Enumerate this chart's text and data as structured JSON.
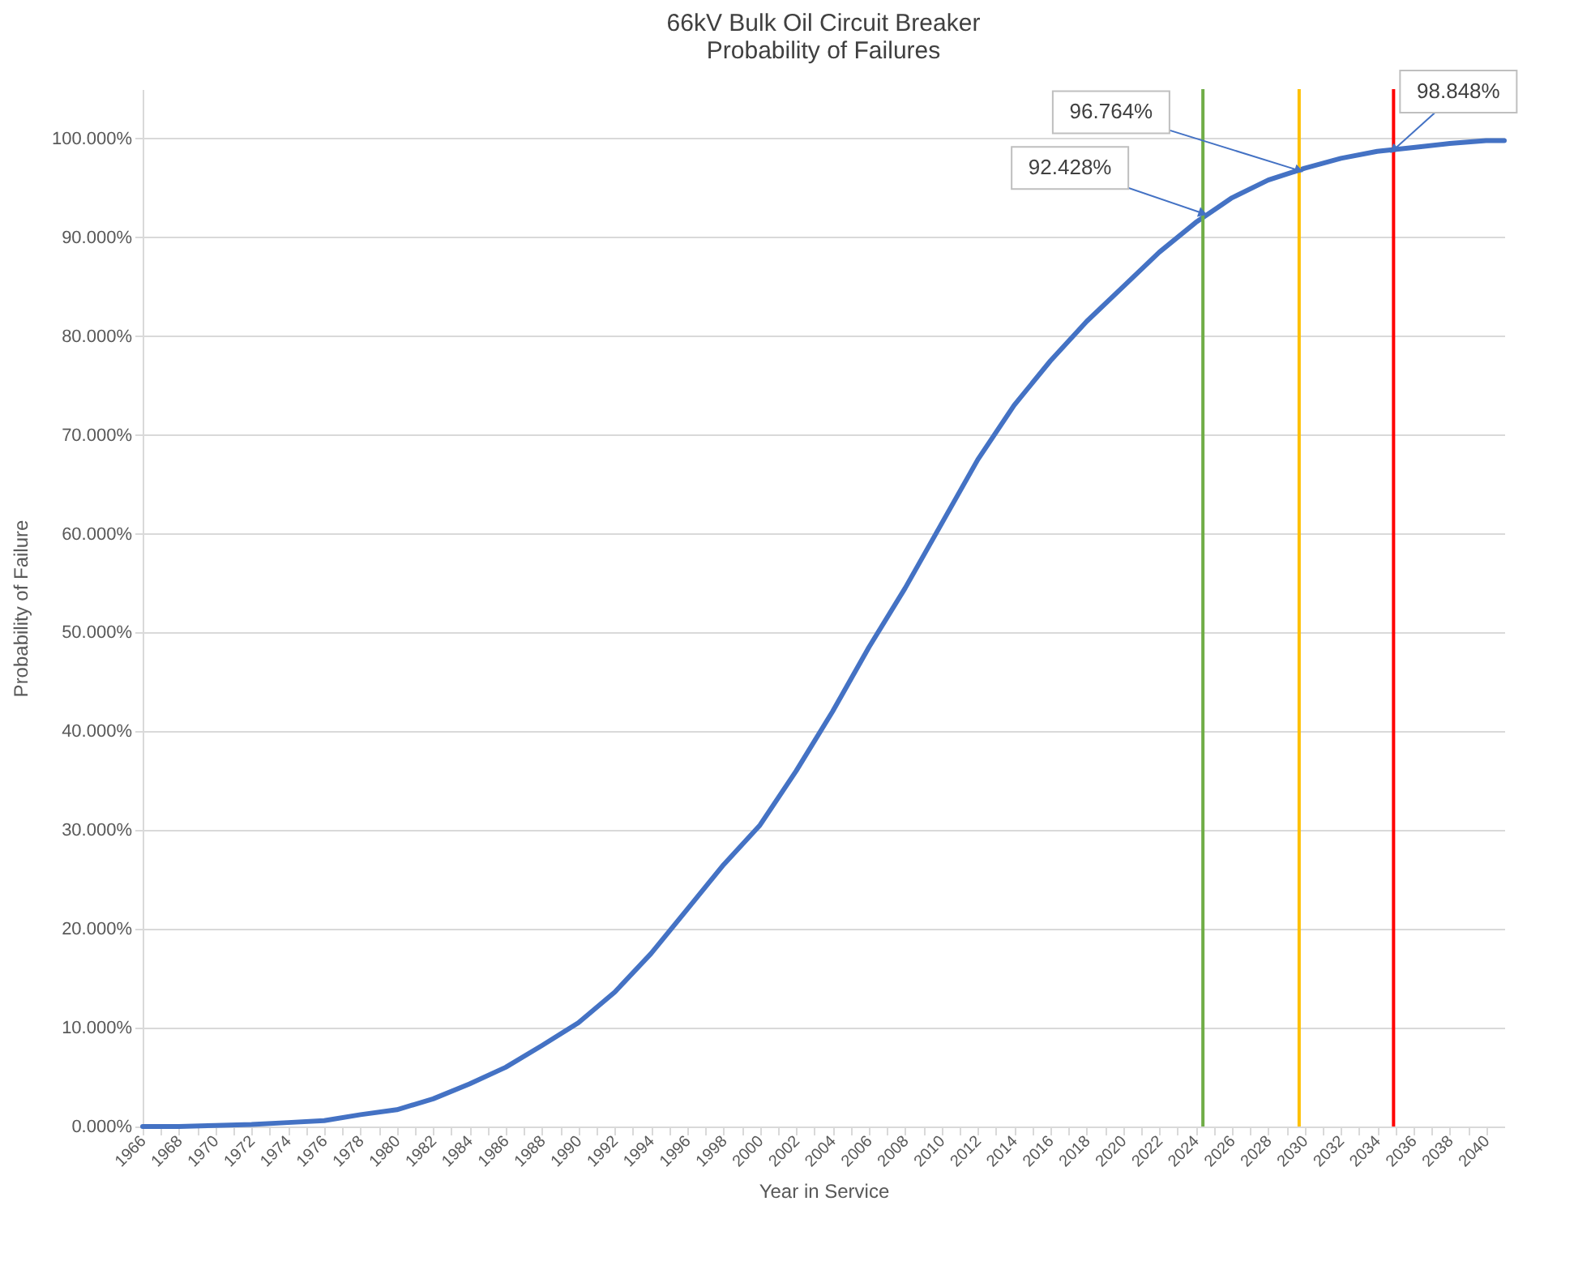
{
  "chart_data": {
    "type": "line",
    "title": [
      "66kV Bulk Oil Circuit Breaker",
      "Probability of Failures"
    ],
    "xlabel": "Year in Service",
    "ylabel": "Probability of Failure",
    "x": [
      1966,
      1968,
      1970,
      1972,
      1974,
      1976,
      1978,
      1980,
      1982,
      1984,
      1986,
      1988,
      1990,
      1992,
      1994,
      1996,
      1998,
      2000,
      2002,
      2004,
      2006,
      2008,
      2010,
      2012,
      2014,
      2016,
      2018,
      2020,
      2022,
      2024,
      2026,
      2028,
      2030,
      2032,
      2034,
      2036,
      2038,
      2040,
      2041
    ],
    "series": [
      {
        "color": "#4472c4",
        "values": [
          0,
          0,
          0.1,
          0.2,
          0.4,
          0.6,
          1.2,
          1.7,
          2.8,
          4.3,
          6,
          8.2,
          10.5,
          13.6,
          17.5,
          22,
          26.5,
          30.5,
          36,
          42,
          48.5,
          54.5,
          61,
          67.5,
          73,
          77.5,
          81.5,
          85,
          88.5,
          91.5,
          94,
          95.8,
          97,
          98,
          98.7,
          99.1,
          99.5,
          99.8,
          99.8
        ]
      }
    ],
    "xlim": [
      1966,
      2041
    ],
    "xticks": [
      1966,
      {
        "value": 1967,
        "label": null
      },
      1968,
      {
        "value": 1969,
        "label": null
      },
      1970,
      {
        "value": 1971,
        "label": null
      },
      1972,
      {
        "value": 1973,
        "label": null
      },
      1974,
      {
        "value": 1975,
        "label": null
      },
      1976,
      {
        "value": 1977,
        "label": null
      },
      1978,
      {
        "value": 1979,
        "label": null
      },
      1980,
      {
        "value": 1981,
        "label": null
      },
      1982,
      {
        "value": 1983,
        "label": null
      },
      1984,
      {
        "value": 1985,
        "label": null
      },
      1986,
      {
        "value": 1987,
        "label": null
      },
      1988,
      {
        "value": 1989,
        "label": null
      },
      1990,
      {
        "value": 1991,
        "label": null
      },
      1992,
      {
        "value": 1993,
        "label": null
      },
      1994,
      {
        "value": 1995,
        "label": null
      },
      1996,
      {
        "value": 1997,
        "label": null
      },
      1998,
      {
        "value": 1999,
        "label": null
      },
      2000,
      {
        "value": 2001,
        "label": null
      },
      2002,
      {
        "value": 2003,
        "label": null
      },
      2004,
      {
        "value": 2005,
        "label": null
      },
      2006,
      {
        "value": 2007,
        "label": null
      },
      2008,
      {
        "value": 2009,
        "label": null
      },
      2010,
      {
        "value": 2011,
        "label": null
      },
      2012,
      {
        "value": 2013,
        "label": null
      },
      2014,
      {
        "value": 2015,
        "label": null
      },
      2016,
      {
        "value": 2017,
        "label": null
      },
      2018,
      {
        "value": 2019,
        "label": null
      },
      2020,
      {
        "value": 2021,
        "label": null
      },
      2022,
      {
        "value": 2023,
        "label": null
      },
      2024,
      {
        "value": 2025,
        "label": null
      },
      2026,
      {
        "value": 2027,
        "label": null
      },
      2028,
      {
        "value": 2029,
        "label": null
      },
      2030,
      {
        "value": 2031,
        "label": null
      },
      2032,
      {
        "value": 2033,
        "label": null
      },
      2034,
      {
        "value": 2035,
        "label": null
      },
      2036,
      {
        "value": 2037,
        "label": null
      },
      2038,
      {
        "value": 2039,
        "label": null
      },
      2040
    ],
    "ylim": [
      0,
      105
    ],
    "yticks": [
      {
        "value": 0,
        "label": "0.000%"
      },
      {
        "value": 10,
        "label": "10.000%"
      },
      {
        "value": 20,
        "label": "20.000%"
      },
      {
        "value": 30,
        "label": "30.000%"
      },
      {
        "value": 40,
        "label": "40.000%"
      },
      {
        "value": 50,
        "label": "50.000%"
      },
      {
        "value": 60,
        "label": "60.000%"
      },
      {
        "value": 70,
        "label": "70.000%"
      },
      {
        "value": 80,
        "label": "80.000%"
      },
      {
        "value": 90,
        "label": "90.000%"
      },
      {
        "value": 100,
        "label": "100.000%"
      }
    ],
    "grid": "y",
    "marker": "none",
    "line_style": "solid",
    "ref_lines": [
      {
        "axis": "x",
        "value": 2024.4,
        "color": "#70ad47"
      },
      {
        "axis": "x",
        "value": 2029.7,
        "color": "#ffc000"
      },
      {
        "axis": "x",
        "value": 2034.9,
        "color": "#ff0000"
      }
    ],
    "annotations": [
      {
        "text": "92.428%",
        "x": 2024.4,
        "y": 92.428
      },
      {
        "text": "96.764%",
        "x": 2029.7,
        "y": 96.764
      },
      {
        "text": "98.848%",
        "x": 2034.9,
        "y": 98.848
      }
    ]
  }
}
